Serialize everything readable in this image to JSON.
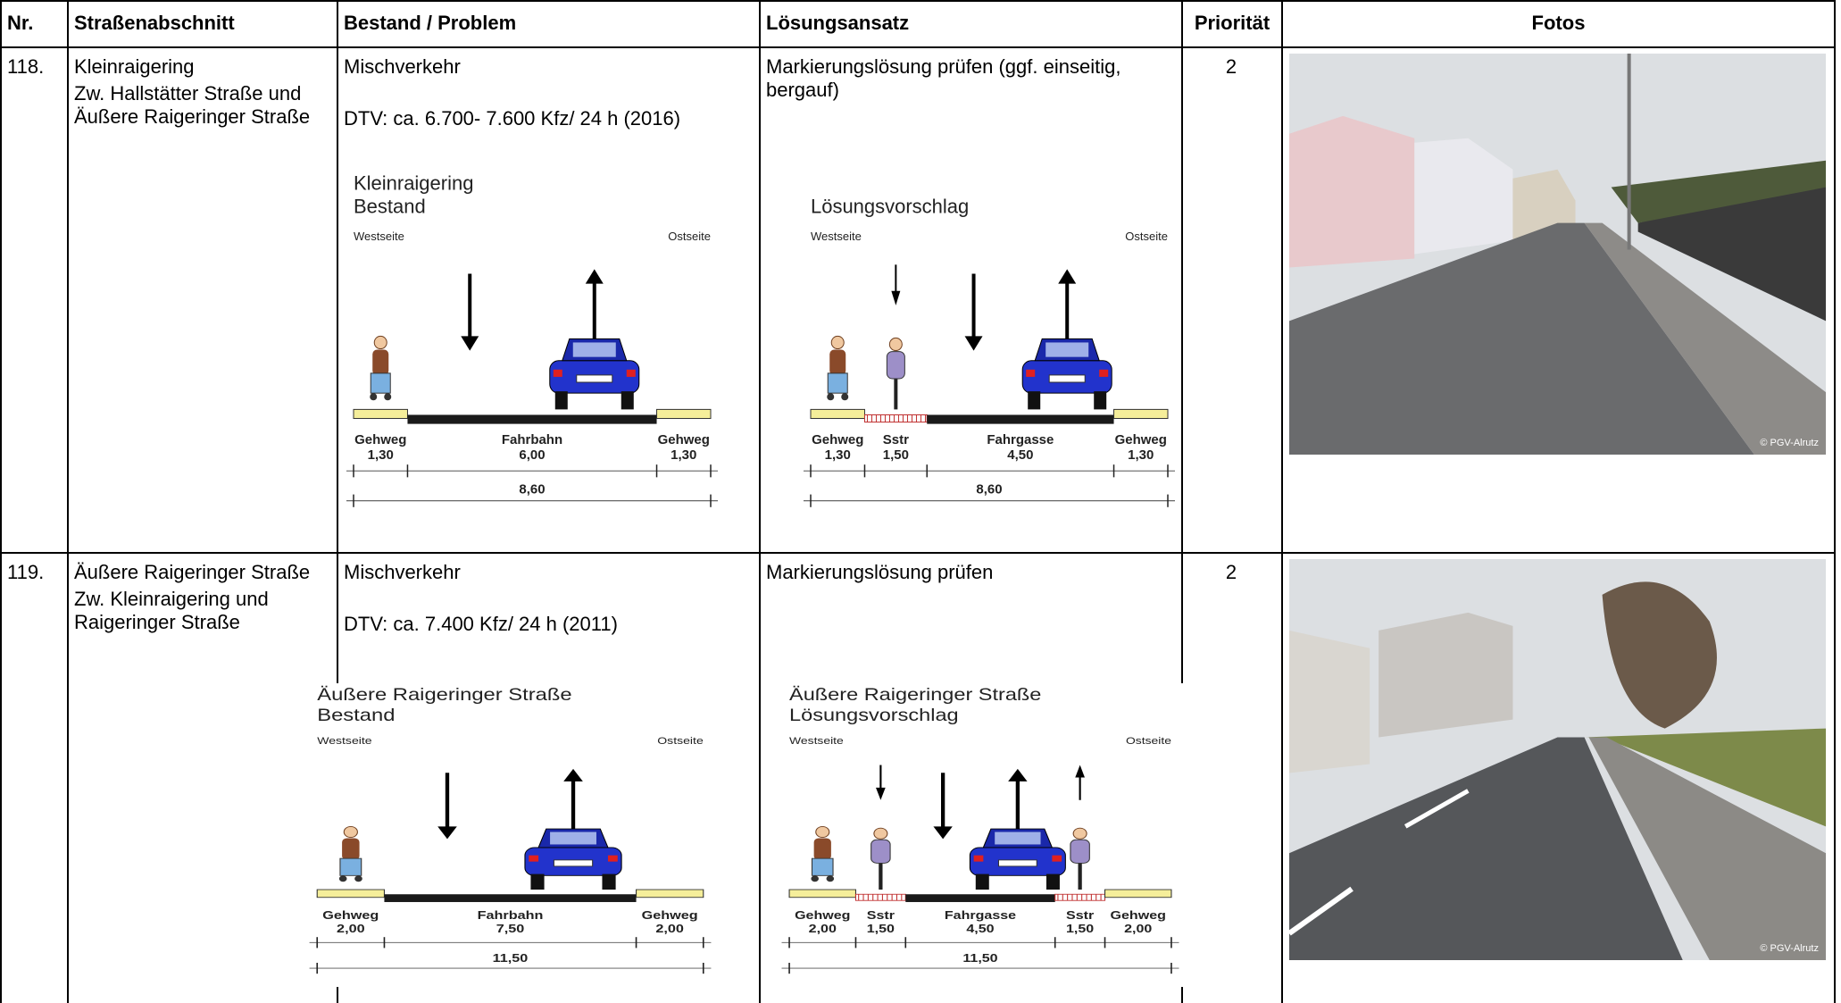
{
  "header": [
    "Nr.",
    "Straßenabschnitt",
    "Bestand / Problem",
    "Lösungsansatz",
    "Priorität",
    "Fotos"
  ],
  "rows": [
    {
      "nr": "118.",
      "section": {
        "name": "Kleinraigering",
        "between": "Zw. Hallstätter Straße und Äußere Raigeringer Straße"
      },
      "problem": {
        "type": "Mischverkehr",
        "dtv": "DTV: ca. 6.700- 7.600 Kfz/ 24 h (2016)"
      },
      "solution": "Markierungslösung prüfen (ggf. einseitig, bergauf)",
      "priority": "2",
      "diagrams": [
        {
          "title": [
            "Kleinraigering",
            "Bestand"
          ],
          "west": "Westseite",
          "east": "Ostseite",
          "segments": [
            {
              "label": "Gehweg",
              "width": "1,30"
            },
            {
              "label": "Fahrbahn",
              "width": "6,00"
            },
            {
              "label": "Gehweg",
              "width": "1,30"
            }
          ],
          "total": "8,60"
        },
        {
          "title": [
            "Lösungsvorschlag"
          ],
          "west": "Westseite",
          "east": "Ostseite",
          "segments": [
            {
              "label": "Gehweg",
              "width": "1,30"
            },
            {
              "label": "Sstr",
              "width": "1,50"
            },
            {
              "label": "Fahrgasse",
              "width": "4,50"
            },
            {
              "label": "Gehweg",
              "width": "1,30"
            }
          ],
          "total": "8,60"
        }
      ],
      "photo_credit": "© PGV-Alrutz"
    },
    {
      "nr": "119.",
      "section": {
        "name": "Äußere Raigeringer Straße",
        "between": "Zw. Kleinraigering und Raigeringer Straße"
      },
      "problem": {
        "type": "Mischverkehr",
        "dtv": "DTV: ca. 7.400 Kfz/ 24 h (2011)"
      },
      "solution": "Markierungslösung prüfen",
      "priority": "2",
      "diagrams": [
        {
          "title": [
            "Äußere Raigeringer Straße",
            "Bestand"
          ],
          "west": "Westseite",
          "east": "Ostseite",
          "segments": [
            {
              "label": "Gehweg",
              "width": "2,00"
            },
            {
              "label": "Fahrbahn",
              "width": "7,50"
            },
            {
              "label": "Gehweg",
              "width": "2,00"
            }
          ],
          "total": "11,50"
        },
        {
          "title": [
            "Äußere Raigeringer Straße",
            "Lösungsvorschlag"
          ],
          "west": "Westseite",
          "east": "Ostseite",
          "segments": [
            {
              "label": "Gehweg",
              "width": "2,00"
            },
            {
              "label": "Sstr",
              "width": "1,50"
            },
            {
              "label": "Fahrgasse",
              "width": "4,50"
            },
            {
              "label": "Sstr",
              "width": "1,50"
            },
            {
              "label": "Gehweg",
              "width": "2,00"
            }
          ],
          "total": "11,50"
        }
      ],
      "photo_credit": "© PGV-Alrutz"
    }
  ]
}
